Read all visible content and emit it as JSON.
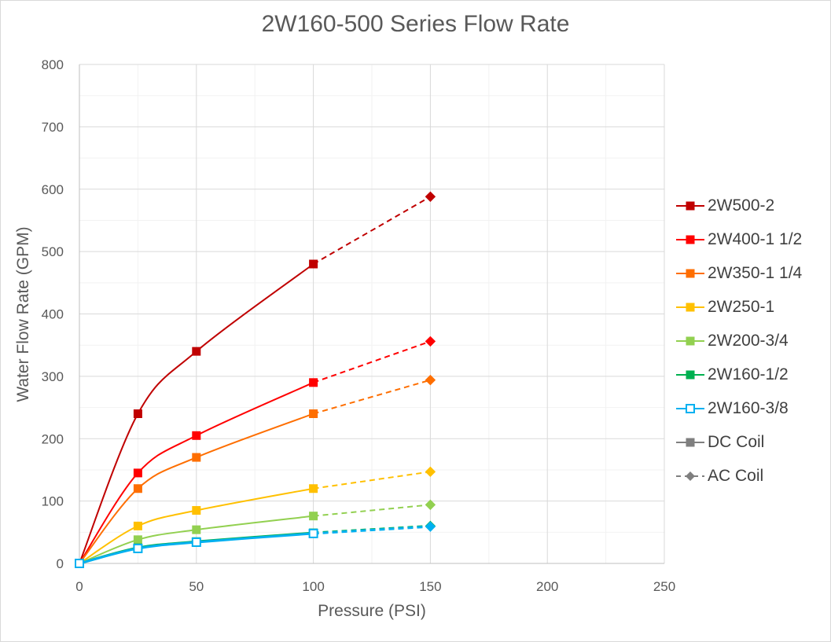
{
  "chart_data": {
    "type": "line",
    "title": "2W160-500 Series Flow Rate",
    "xlabel": "Pressure (PSI)",
    "ylabel": "Water Flow Rate (GPM)",
    "xlim": [
      0,
      250
    ],
    "ylim": [
      0,
      800
    ],
    "xticks": [
      "0",
      "50",
      "100",
      "150",
      "200",
      "250"
    ],
    "yticks": [
      "0",
      "100",
      "200",
      "300",
      "400",
      "500",
      "600",
      "700",
      "800"
    ],
    "grid": "major and minor vertical and horizontal gridlines",
    "legend_position": "right",
    "series": [
      {
        "name": "2W500-2",
        "color": "#c00000",
        "dc_points": [
          [
            0,
            0
          ],
          [
            25,
            240
          ],
          [
            50,
            340
          ],
          [
            100,
            480
          ]
        ],
        "ac_points": [
          [
            100,
            480
          ],
          [
            150,
            588
          ]
        ]
      },
      {
        "name": "2W400-1 1/2",
        "color": "#ff0000",
        "dc_points": [
          [
            0,
            0
          ],
          [
            25,
            145
          ],
          [
            50,
            205
          ],
          [
            100,
            290
          ]
        ],
        "ac_points": [
          [
            100,
            290
          ],
          [
            150,
            356
          ]
        ]
      },
      {
        "name": "2W350-1 1/4",
        "color": "#fe6e00",
        "dc_points": [
          [
            0,
            0
          ],
          [
            25,
            120
          ],
          [
            50,
            170
          ],
          [
            100,
            240
          ]
        ],
        "ac_points": [
          [
            100,
            240
          ],
          [
            150,
            294
          ]
        ]
      },
      {
        "name": "2W250-1",
        "color": "#ffc000",
        "dc_points": [
          [
            0,
            0
          ],
          [
            25,
            60
          ],
          [
            50,
            85
          ],
          [
            100,
            120
          ]
        ],
        "ac_points": [
          [
            100,
            120
          ],
          [
            150,
            147
          ]
        ]
      },
      {
        "name": "2W200-3/4",
        "color": "#92d050",
        "dc_points": [
          [
            0,
            0
          ],
          [
            25,
            38
          ],
          [
            50,
            54
          ],
          [
            100,
            76
          ]
        ],
        "ac_points": [
          [
            100,
            76
          ],
          [
            150,
            94
          ]
        ]
      },
      {
        "name": "2W160-1/2",
        "color": "#00b050",
        "dc_points": [
          [
            0,
            0
          ],
          [
            25,
            25
          ],
          [
            50,
            35
          ],
          [
            100,
            49
          ]
        ],
        "ac_points": [
          [
            100,
            49
          ],
          [
            150,
            60
          ]
        ]
      },
      {
        "name": "2W160-3/8",
        "color": "#00b0f0",
        "dc_points": [
          [
            0,
            0
          ],
          [
            25,
            24
          ],
          [
            50,
            34
          ],
          [
            100,
            48
          ]
        ],
        "ac_points": [
          [
            100,
            48
          ],
          [
            150,
            59
          ]
        ]
      }
    ],
    "marker_legend": [
      {
        "name": "DC Coil",
        "color": "#7f7f7f"
      },
      {
        "name": "AC Coil",
        "color": "#7f7f7f"
      }
    ]
  }
}
